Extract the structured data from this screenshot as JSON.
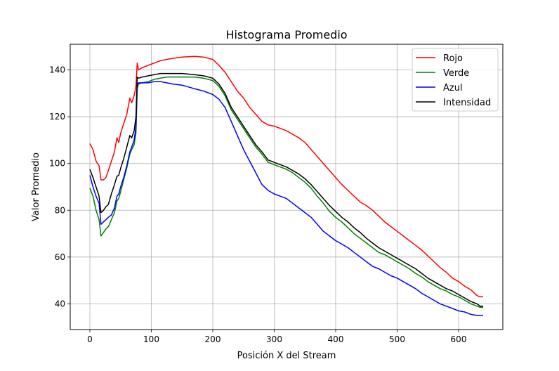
{
  "chart_data": {
    "type": "line",
    "title": "Histograma Promedio",
    "xlabel": "Posición X del Stream",
    "ylabel": "Valor Promedio",
    "xlim": [
      -32,
      672
    ],
    "ylim": [
      29,
      151
    ],
    "xticks": [
      0,
      100,
      200,
      300,
      400,
      500,
      600
    ],
    "yticks": [
      40,
      60,
      80,
      100,
      120,
      140
    ],
    "grid": true,
    "legend_position": "top-right",
    "series": [
      {
        "name": "Rojo",
        "color": "#ff0000",
        "points": [
          [
            0,
            108.5
          ],
          [
            5,
            106
          ],
          [
            10,
            101
          ],
          [
            15,
            99
          ],
          [
            18,
            93
          ],
          [
            22,
            93
          ],
          [
            26,
            94
          ],
          [
            30,
            97
          ],
          [
            35,
            101
          ],
          [
            40,
            105
          ],
          [
            44,
            111
          ],
          [
            47,
            109
          ],
          [
            50,
            113
          ],
          [
            55,
            117
          ],
          [
            60,
            121
          ],
          [
            65,
            128
          ],
          [
            68,
            126
          ],
          [
            72,
            129
          ],
          [
            75,
            133
          ],
          [
            77,
            143
          ],
          [
            79,
            140
          ],
          [
            85,
            141
          ],
          [
            95,
            142
          ],
          [
            105,
            143
          ],
          [
            115,
            144
          ],
          [
            125,
            144.5
          ],
          [
            135,
            145
          ],
          [
            150,
            145.5
          ],
          [
            170,
            145.8
          ],
          [
            185,
            145.5
          ],
          [
            200,
            144.5
          ],
          [
            210,
            142
          ],
          [
            220,
            139
          ],
          [
            230,
            135
          ],
          [
            240,
            131
          ],
          [
            250,
            128
          ],
          [
            260,
            124
          ],
          [
            270,
            121
          ],
          [
            280,
            118
          ],
          [
            290,
            116.5
          ],
          [
            300,
            116
          ],
          [
            310,
            115
          ],
          [
            320,
            114
          ],
          [
            330,
            112.5
          ],
          [
            340,
            111
          ],
          [
            350,
            109
          ],
          [
            360,
            106
          ],
          [
            370,
            103
          ],
          [
            380,
            100
          ],
          [
            390,
            97
          ],
          [
            400,
            94
          ],
          [
            410,
            91
          ],
          [
            420,
            88.5
          ],
          [
            430,
            86
          ],
          [
            440,
            83.5
          ],
          [
            450,
            82
          ],
          [
            460,
            80
          ],
          [
            470,
            77.5
          ],
          [
            480,
            75
          ],
          [
            490,
            73
          ],
          [
            500,
            71
          ],
          [
            510,
            69
          ],
          [
            520,
            67
          ],
          [
            530,
            65
          ],
          [
            540,
            63
          ],
          [
            550,
            60.5
          ],
          [
            560,
            58
          ],
          [
            570,
            55.5
          ],
          [
            580,
            53.5
          ],
          [
            590,
            51
          ],
          [
            600,
            49.5
          ],
          [
            610,
            47.5
          ],
          [
            620,
            46
          ],
          [
            630,
            43.5
          ],
          [
            635,
            43
          ],
          [
            640,
            43
          ]
        ]
      },
      {
        "name": "Verde",
        "color": "#008000",
        "points": [
          [
            0,
            89.5
          ],
          [
            5,
            86
          ],
          [
            10,
            80
          ],
          [
            15,
            76
          ],
          [
            18,
            69
          ],
          [
            22,
            70.5
          ],
          [
            26,
            72
          ],
          [
            30,
            73
          ],
          [
            35,
            76
          ],
          [
            40,
            79
          ],
          [
            44,
            84
          ],
          [
            47,
            85
          ],
          [
            50,
            88
          ],
          [
            55,
            93
          ],
          [
            60,
            98
          ],
          [
            65,
            104
          ],
          [
            68,
            106
          ],
          [
            72,
            108
          ],
          [
            75,
            113
          ],
          [
            77,
            132
          ],
          [
            79,
            134
          ],
          [
            85,
            134.5
          ],
          [
            95,
            135
          ],
          [
            105,
            136
          ],
          [
            115,
            136.5
          ],
          [
            125,
            137
          ],
          [
            135,
            137
          ],
          [
            150,
            137
          ],
          [
            170,
            137
          ],
          [
            185,
            136.5
          ],
          [
            200,
            135.5
          ],
          [
            210,
            133
          ],
          [
            220,
            129
          ],
          [
            230,
            123
          ],
          [
            240,
            119
          ],
          [
            250,
            115
          ],
          [
            260,
            111
          ],
          [
            270,
            107
          ],
          [
            280,
            104
          ],
          [
            290,
            100.5
          ],
          [
            300,
            99.5
          ],
          [
            310,
            98.5
          ],
          [
            320,
            97.5
          ],
          [
            330,
            96
          ],
          [
            340,
            94
          ],
          [
            350,
            92
          ],
          [
            360,
            89.5
          ],
          [
            370,
            86
          ],
          [
            380,
            83
          ],
          [
            390,
            79.5
          ],
          [
            400,
            77
          ],
          [
            410,
            75
          ],
          [
            420,
            72.5
          ],
          [
            430,
            70
          ],
          [
            440,
            68
          ],
          [
            450,
            66
          ],
          [
            460,
            64
          ],
          [
            470,
            62
          ],
          [
            480,
            61
          ],
          [
            490,
            59.5
          ],
          [
            500,
            58
          ],
          [
            510,
            56.5
          ],
          [
            520,
            55
          ],
          [
            530,
            53
          ],
          [
            540,
            51.5
          ],
          [
            550,
            49.5
          ],
          [
            560,
            48
          ],
          [
            570,
            46.5
          ],
          [
            580,
            45.5
          ],
          [
            590,
            44
          ],
          [
            600,
            43
          ],
          [
            610,
            41.5
          ],
          [
            620,
            40
          ],
          [
            630,
            39
          ],
          [
            635,
            38.5
          ],
          [
            640,
            38.5
          ]
        ]
      },
      {
        "name": "Azul",
        "color": "#0000ff",
        "points": [
          [
            0,
            95
          ],
          [
            5,
            90
          ],
          [
            10,
            86
          ],
          [
            15,
            83
          ],
          [
            18,
            74
          ],
          [
            22,
            75
          ],
          [
            26,
            76
          ],
          [
            30,
            77
          ],
          [
            35,
            78
          ],
          [
            40,
            81
          ],
          [
            44,
            86
          ],
          [
            47,
            87
          ],
          [
            50,
            90
          ],
          [
            55,
            94
          ],
          [
            60,
            99
          ],
          [
            65,
            105
          ],
          [
            68,
            107
          ],
          [
            72,
            110
          ],
          [
            75,
            116
          ],
          [
            77,
            133
          ],
          [
            79,
            134.5
          ],
          [
            85,
            134.5
          ],
          [
            95,
            134.5
          ],
          [
            105,
            135
          ],
          [
            115,
            135
          ],
          [
            125,
            134.5
          ],
          [
            135,
            134
          ],
          [
            150,
            133.5
          ],
          [
            170,
            132
          ],
          [
            185,
            131
          ],
          [
            200,
            129.5
          ],
          [
            210,
            127.5
          ],
          [
            220,
            124
          ],
          [
            230,
            118
          ],
          [
            240,
            112
          ],
          [
            250,
            106
          ],
          [
            260,
            101
          ],
          [
            270,
            96
          ],
          [
            280,
            91
          ],
          [
            290,
            88.5
          ],
          [
            300,
            87
          ],
          [
            310,
            86
          ],
          [
            320,
            85
          ],
          [
            330,
            83
          ],
          [
            340,
            81
          ],
          [
            350,
            79
          ],
          [
            360,
            77
          ],
          [
            370,
            74
          ],
          [
            380,
            71
          ],
          [
            390,
            69
          ],
          [
            400,
            67
          ],
          [
            410,
            65.5
          ],
          [
            420,
            64
          ],
          [
            430,
            62
          ],
          [
            440,
            60
          ],
          [
            450,
            58
          ],
          [
            460,
            56
          ],
          [
            470,
            55
          ],
          [
            480,
            53.5
          ],
          [
            490,
            52
          ],
          [
            500,
            51
          ],
          [
            510,
            49.5
          ],
          [
            520,
            48
          ],
          [
            530,
            46.5
          ],
          [
            540,
            44.5
          ],
          [
            550,
            43
          ],
          [
            560,
            41.5
          ],
          [
            570,
            40
          ],
          [
            580,
            39
          ],
          [
            590,
            38
          ],
          [
            600,
            37
          ],
          [
            610,
            36.5
          ],
          [
            620,
            35.5
          ],
          [
            630,
            35
          ],
          [
            635,
            35
          ],
          [
            640,
            35
          ]
        ]
      },
      {
        "name": "Intensidad",
        "color": "#000000",
        "points": [
          [
            0,
            97.5
          ],
          [
            5,
            94
          ],
          [
            10,
            90
          ],
          [
            15,
            86
          ],
          [
            18,
            79
          ],
          [
            22,
            80
          ],
          [
            26,
            81.5
          ],
          [
            30,
            82.5
          ],
          [
            35,
            87
          ],
          [
            40,
            91
          ],
          [
            44,
            94.5
          ],
          [
            47,
            95
          ],
          [
            50,
            98
          ],
          [
            55,
            102
          ],
          [
            60,
            107
          ],
          [
            65,
            112
          ],
          [
            68,
            111
          ],
          [
            72,
            114
          ],
          [
            75,
            120
          ],
          [
            77,
            137
          ],
          [
            79,
            136.5
          ],
          [
            85,
            137
          ],
          [
            95,
            137.5
          ],
          [
            105,
            138
          ],
          [
            115,
            138.5
          ],
          [
            125,
            138.5
          ],
          [
            135,
            138.5
          ],
          [
            150,
            138.5
          ],
          [
            170,
            138
          ],
          [
            185,
            137.5
          ],
          [
            200,
            136.5
          ],
          [
            210,
            134
          ],
          [
            220,
            130
          ],
          [
            230,
            124
          ],
          [
            240,
            120
          ],
          [
            250,
            116
          ],
          [
            260,
            112
          ],
          [
            270,
            108
          ],
          [
            280,
            105
          ],
          [
            290,
            101.5
          ],
          [
            300,
            100.5
          ],
          [
            310,
            99.5
          ],
          [
            320,
            98.5
          ],
          [
            330,
            97
          ],
          [
            340,
            95.5
          ],
          [
            350,
            93.5
          ],
          [
            360,
            91
          ],
          [
            370,
            88
          ],
          [
            380,
            85
          ],
          [
            390,
            82
          ],
          [
            400,
            79.5
          ],
          [
            410,
            77
          ],
          [
            420,
            75
          ],
          [
            430,
            72.5
          ],
          [
            440,
            70.5
          ],
          [
            450,
            68
          ],
          [
            460,
            66
          ],
          [
            470,
            64
          ],
          [
            480,
            62.5
          ],
          [
            490,
            61
          ],
          [
            500,
            59.5
          ],
          [
            510,
            58
          ],
          [
            520,
            56.5
          ],
          [
            530,
            55
          ],
          [
            540,
            53
          ],
          [
            550,
            51
          ],
          [
            560,
            49.5
          ],
          [
            570,
            48
          ],
          [
            580,
            46.5
          ],
          [
            590,
            45.5
          ],
          [
            600,
            44
          ],
          [
            610,
            42.5
          ],
          [
            620,
            41
          ],
          [
            630,
            40
          ],
          [
            635,
            39
          ],
          [
            640,
            39
          ]
        ]
      }
    ]
  }
}
